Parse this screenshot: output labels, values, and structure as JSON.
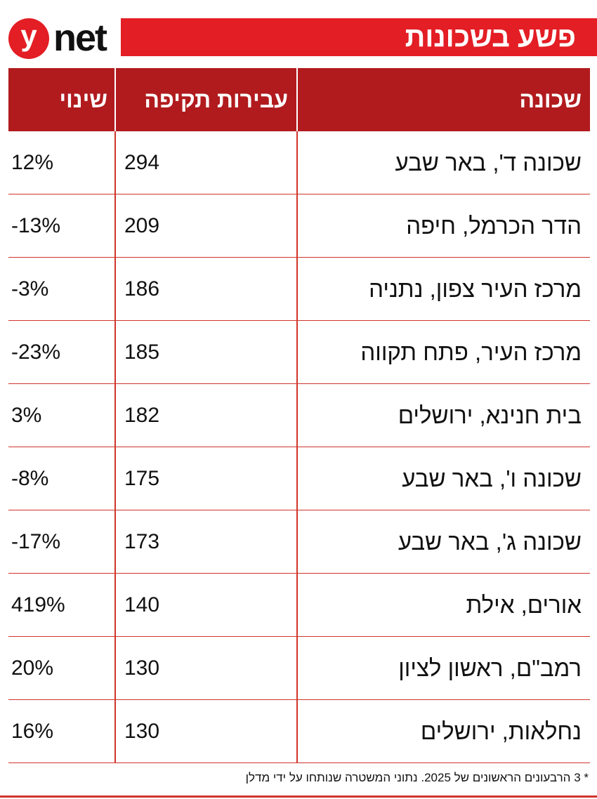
{
  "logo": {
    "mark": "y",
    "text": "net"
  },
  "title": "פשע בשכונות",
  "chart_data": {
    "type": "table",
    "columns": [
      "שכונה",
      "עבירות תקיפה",
      "שינוי"
    ],
    "rows": [
      {
        "neighborhood": "שכונה ד', באר שבע",
        "assaults": "294",
        "change": "12%"
      },
      {
        "neighborhood": "הדר הכרמל, חיפה",
        "assaults": "209",
        "change": "-13%"
      },
      {
        "neighborhood": "מרכז העיר צפון, נתניה",
        "assaults": "186",
        "change": "-3%"
      },
      {
        "neighborhood": "מרכז העיר, פתח תקווה",
        "assaults": "185",
        "change": "-23%"
      },
      {
        "neighborhood": "בית חנינא, ירושלים",
        "assaults": "182",
        "change": "3%"
      },
      {
        "neighborhood": "שכונה ו', באר שבע",
        "assaults": "175",
        "change": "-8%"
      },
      {
        "neighborhood": "שכונה ג', באר שבע",
        "assaults": "173",
        "change": "-17%"
      },
      {
        "neighborhood": "אורים, אילת",
        "assaults": "140",
        "change": "419%"
      },
      {
        "neighborhood": "רמב\"ם, ראשון לציון",
        "assaults": "130",
        "change": "20%"
      },
      {
        "neighborhood": "נחלאות, ירושלים",
        "assaults": "130",
        "change": "16%"
      }
    ]
  },
  "footnote": "* 3 הרבעונים הראשונים של 2025. נתוני המשטרה שנותחו על ידי מדלן",
  "colors": {
    "brand_red": "#e31e24",
    "header_red": "#b11b1e",
    "rule_red": "#d0342c"
  }
}
